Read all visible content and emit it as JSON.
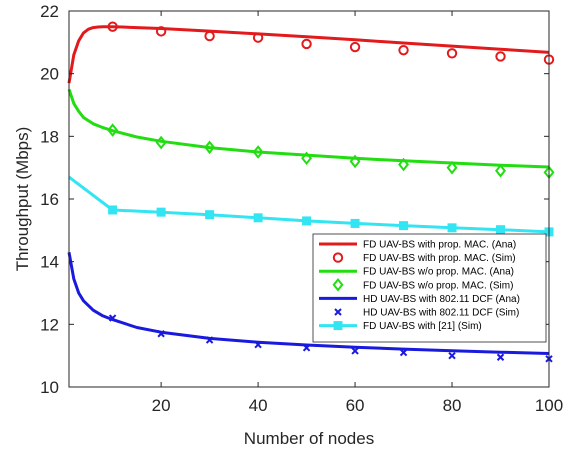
{
  "chart_data": {
    "type": "line",
    "xlabel": "Number of nodes",
    "ylabel": "Throughput (Mbps)",
    "xlim": [
      1,
      100
    ],
    "ylim": [
      10,
      22
    ],
    "xticks": [
      20,
      40,
      60,
      80,
      100
    ],
    "yticks": [
      10,
      12,
      14,
      16,
      18,
      20,
      22
    ],
    "grid": false,
    "legend_position": "bottom-right",
    "series": [
      {
        "name": "FD UAV-BS with prop. MAC. (Ana)",
        "style": "line",
        "color": "#e31a1c",
        "x": [
          1,
          2,
          3,
          4,
          5,
          6,
          7,
          8,
          10,
          12,
          15,
          20,
          30,
          40,
          50,
          60,
          70,
          80,
          90,
          100
        ],
        "y": [
          19.7,
          20.6,
          21.05,
          21.3,
          21.42,
          21.47,
          21.49,
          21.5,
          21.5,
          21.49,
          21.47,
          21.44,
          21.36,
          21.27,
          21.18,
          21.08,
          20.98,
          20.88,
          20.78,
          20.68
        ]
      },
      {
        "name": "FD UAV-BS with prop. MAC. (Sim)",
        "style": "marker",
        "marker": "circle",
        "color": "#e31a1c",
        "x": [
          10,
          20,
          30,
          40,
          50,
          60,
          70,
          80,
          90,
          100
        ],
        "y": [
          21.5,
          21.35,
          21.2,
          21.15,
          20.95,
          20.85,
          20.75,
          20.65,
          20.55,
          20.45
        ]
      },
      {
        "name": "FD UAV-BS w/o prop. MAC. (Ana)",
        "style": "line",
        "color": "#22dd11",
        "x": [
          1,
          2,
          3,
          4,
          6,
          8,
          10,
          15,
          20,
          30,
          40,
          50,
          60,
          70,
          80,
          90,
          100
        ],
        "y": [
          19.5,
          19.05,
          18.8,
          18.6,
          18.4,
          18.28,
          18.18,
          17.98,
          17.84,
          17.64,
          17.5,
          17.4,
          17.3,
          17.22,
          17.15,
          17.08,
          17.02
        ]
      },
      {
        "name": "FD UAV-BS w/o prop. MAC. (Sim)",
        "style": "marker",
        "marker": "diamond",
        "color": "#22dd11",
        "x": [
          10,
          20,
          30,
          40,
          50,
          60,
          70,
          80,
          90,
          100
        ],
        "y": [
          18.2,
          17.8,
          17.65,
          17.5,
          17.3,
          17.2,
          17.1,
          17.0,
          16.9,
          16.85
        ]
      },
      {
        "name": "HD UAV-BS with 802.11 DCF (Ana)",
        "style": "line",
        "color": "#1a1adf",
        "x": [
          1,
          2,
          3,
          4,
          6,
          8,
          10,
          15,
          20,
          30,
          40,
          50,
          60,
          70,
          80,
          90,
          100
        ],
        "y": [
          14.3,
          13.45,
          13.0,
          12.75,
          12.45,
          12.27,
          12.15,
          11.9,
          11.75,
          11.55,
          11.43,
          11.34,
          11.27,
          11.21,
          11.16,
          11.11,
          11.07
        ]
      },
      {
        "name": "HD UAV-BS with 802.11 DCF (Sim)",
        "style": "marker",
        "marker": "x",
        "color": "#1a1adf",
        "x": [
          10,
          20,
          30,
          40,
          50,
          60,
          70,
          80,
          90,
          100
        ],
        "y": [
          12.2,
          11.7,
          11.5,
          11.35,
          11.25,
          11.15,
          11.1,
          11.0,
          10.95,
          10.9
        ]
      },
      {
        "name": "FD UAV-BS with [21] (Sim)",
        "style": "line-marker",
        "marker": "square",
        "color": "#33e5f2",
        "x": [
          1,
          10,
          20,
          30,
          40,
          50,
          60,
          70,
          80,
          90,
          100
        ],
        "y": [
          16.7,
          15.65,
          15.58,
          15.5,
          15.4,
          15.3,
          15.22,
          15.15,
          15.08,
          15.02,
          14.95
        ]
      }
    ]
  }
}
